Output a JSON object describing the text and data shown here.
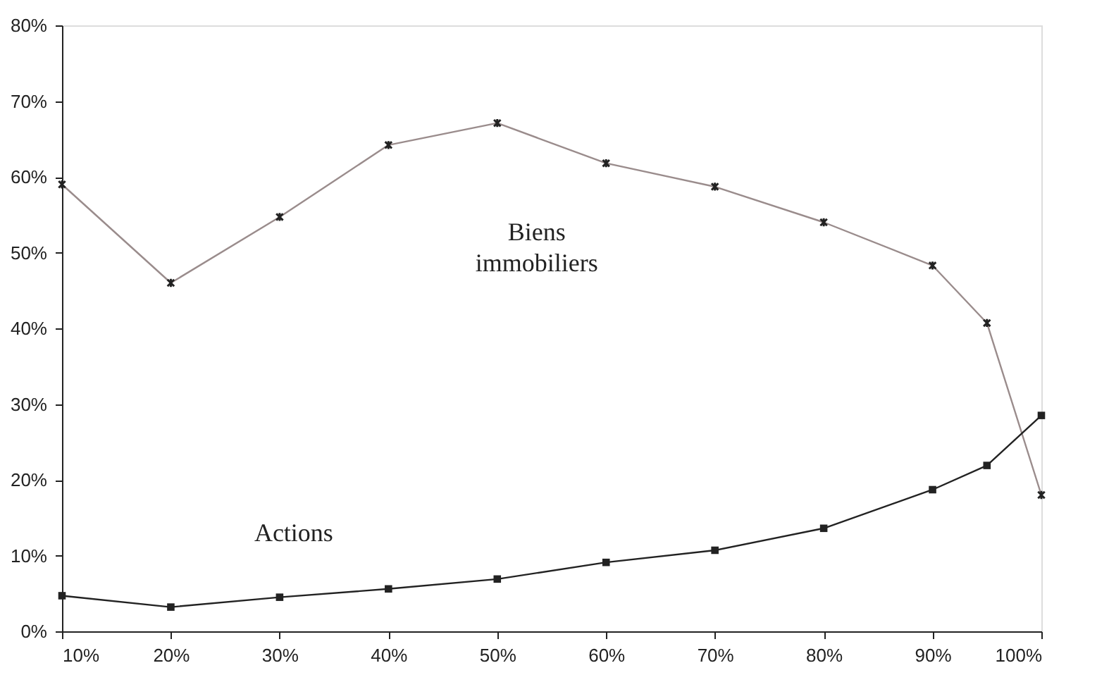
{
  "chart_data": {
    "type": "line",
    "x": [
      10,
      20,
      30,
      40,
      50,
      60,
      70,
      80,
      90,
      95,
      100
    ],
    "series": [
      {
        "name": "Biens immobiliers",
        "color": "#9a8c8c",
        "marker": "cross",
        "values": [
          59,
          46,
          54.7,
          64.2,
          67.1,
          61.8,
          58.7,
          54,
          48.3,
          40.7,
          18
        ]
      },
      {
        "name": "Actions",
        "color": "#222222",
        "marker": "square",
        "values": [
          4.7,
          3.2,
          4.5,
          5.6,
          6.9,
          9.1,
          10.7,
          13.6,
          18.7,
          21.9,
          28.5
        ]
      }
    ],
    "xlim": [
      10,
      100
    ],
    "xticks": [
      {
        "value": 10,
        "label": "10%"
      },
      {
        "value": 20,
        "label": "20%"
      },
      {
        "value": 30,
        "label": "30%"
      },
      {
        "value": 40,
        "label": "40%"
      },
      {
        "value": 50,
        "label": "50%"
      },
      {
        "value": 60,
        "label": "60%"
      },
      {
        "value": 70,
        "label": "70%"
      },
      {
        "value": 80,
        "label": "80%"
      },
      {
        "value": 90,
        "label": "90%"
      },
      {
        "value": 100,
        "label": "100%"
      }
    ],
    "ylim": [
      0,
      80
    ],
    "yticks": [
      {
        "value": 0,
        "label": "0%"
      },
      {
        "value": 10,
        "label": "10%"
      },
      {
        "value": 20,
        "label": "20%"
      },
      {
        "value": 30,
        "label": "30%"
      },
      {
        "value": 40,
        "label": "40%"
      },
      {
        "value": 50,
        "label": "50%"
      },
      {
        "value": 60,
        "label": "60%"
      },
      {
        "value": 70,
        "label": "70%"
      },
      {
        "value": 80,
        "label": "80%"
      }
    ],
    "grid": false,
    "line_style": "solid"
  }
}
